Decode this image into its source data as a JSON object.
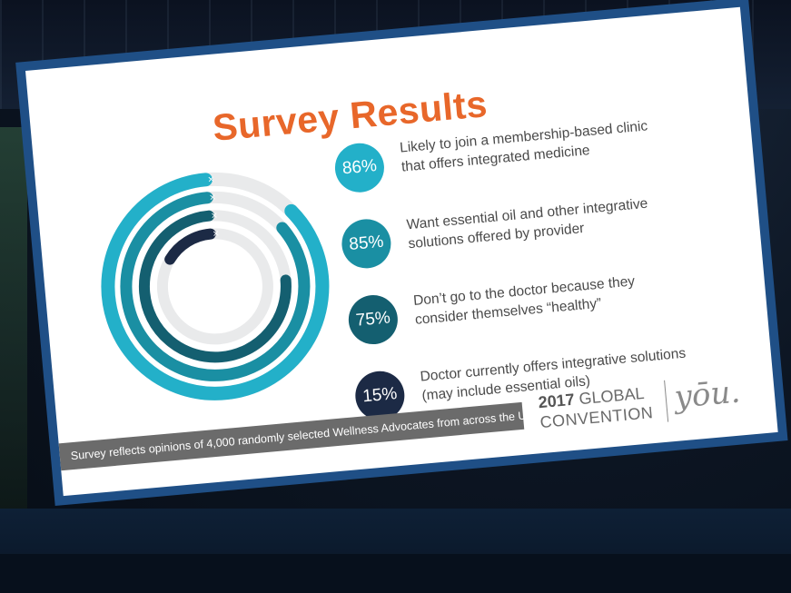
{
  "slide": {
    "title": "Survey Results",
    "footnote": "Survey reflects opinions of 4,000 randomly selected Wellness Advocates from across the US",
    "brand": {
      "year": "2017",
      "line1_rest": "GLOBAL",
      "line2": "CONVENTION",
      "logo": "yōu."
    }
  },
  "chart_data": {
    "type": "radial-bar",
    "title": "Survey Results",
    "series": [
      {
        "value": 86,
        "label": "86%",
        "text_line1": "Likely to join a membership-based clinic",
        "text_line2": "that offers integrated medicine",
        "color": "#23b0c9"
      },
      {
        "value": 85,
        "label": "85%",
        "text_line1": "Want essential oil and other integrative",
        "text_line2": "solutions offered by provider",
        "color": "#1a8fa3"
      },
      {
        "value": 75,
        "label": "75%",
        "text_line1": "Don’t go to the doctor because they",
        "text_line2": "consider themselves “healthy”",
        "color": "#145f70"
      },
      {
        "value": 15,
        "label": "15%",
        "text_line1": "Doctor currently offers integrative solutions",
        "text_line2": "(may include essential oils)",
        "color": "#1c2a45"
      }
    ],
    "max": 100,
    "track_color": "#e9eaeb"
  }
}
